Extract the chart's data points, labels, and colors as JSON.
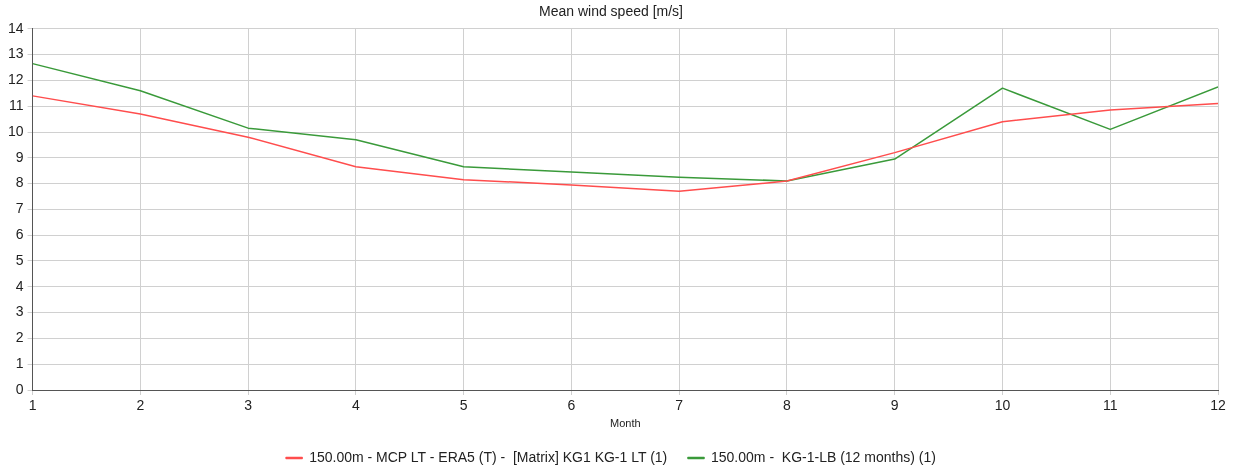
{
  "chart_data": {
    "type": "line",
    "title": "Mean wind speed [m/s]",
    "xlabel": "Month",
    "x": [
      1,
      2,
      3,
      4,
      5,
      6,
      7,
      8,
      9,
      10,
      11,
      12
    ],
    "series": [
      {
        "name": "150.00m - MCP LT - ERA5 (T) -  [Matrix] KG1 KG-1 LT (1)",
        "color": "#ff4d4d",
        "values": [
          11.4,
          10.7,
          9.8,
          8.65,
          8.15,
          7.95,
          7.7,
          8.1,
          9.2,
          10.4,
          10.85,
          11.1
        ]
      },
      {
        "name": "150.00m -  KG-1-LB (12 months) (1)",
        "color": "#3a9a3a",
        "values": [
          12.65,
          11.6,
          10.15,
          9.7,
          8.65,
          8.45,
          8.25,
          8.1,
          8.95,
          11.7,
          10.1,
          11.75
        ]
      }
    ],
    "xlim": [
      1,
      12
    ],
    "xticks": [
      1,
      2,
      3,
      4,
      5,
      6,
      7,
      8,
      9,
      10,
      11,
      12
    ],
    "ylim": [
      0,
      14
    ],
    "yticks": [
      0,
      1,
      2,
      3,
      4,
      5,
      6,
      7,
      8,
      9,
      10,
      11,
      12,
      13,
      14
    ],
    "grid": true,
    "legend": "bottom",
    "marker": "none",
    "line_style": "solid"
  }
}
